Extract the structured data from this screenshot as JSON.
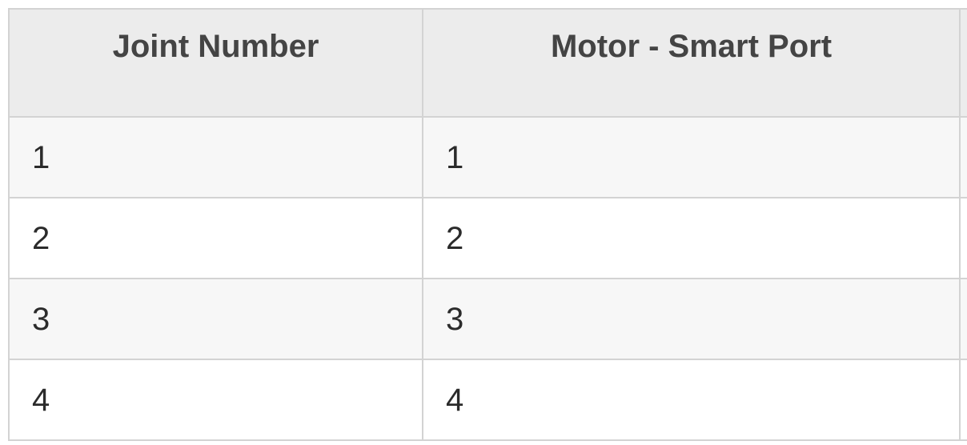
{
  "table": {
    "columns": [
      {
        "label": "Joint Number"
      },
      {
        "label": "Motor - Smart Port"
      }
    ],
    "rows": [
      {
        "joint_number": "1",
        "motor_smart_port": "1"
      },
      {
        "joint_number": "2",
        "motor_smart_port": "2"
      },
      {
        "joint_number": "3",
        "motor_smart_port": "3"
      },
      {
        "joint_number": "4",
        "motor_smart_port": "4"
      }
    ]
  },
  "colors": {
    "header_background": "#ececec",
    "row_stripe_background": "#f7f7f7",
    "border": "#d3d3d3",
    "header_text": "#444444",
    "body_text": "#2b2b2b"
  }
}
